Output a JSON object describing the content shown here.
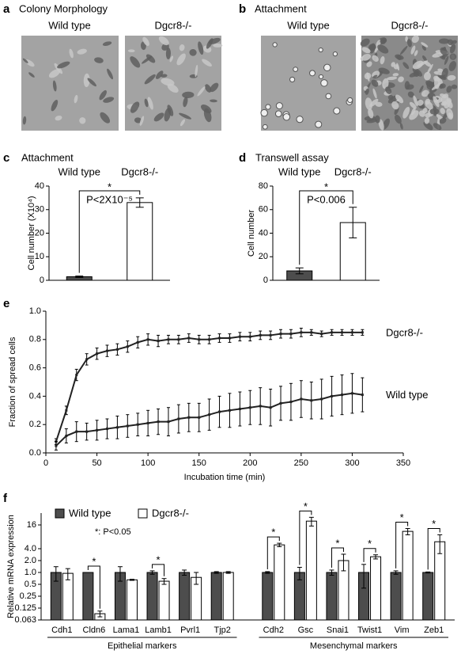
{
  "panels": {
    "a": {
      "letter": "a",
      "title": "Colony Morphology",
      "labels": [
        "Wild type",
        "Dgcr8-/-"
      ]
    },
    "b": {
      "letter": "b",
      "title": "Attachment",
      "labels": [
        "Wild type",
        "Dgcr8-/-"
      ]
    }
  },
  "chart_data": [
    {
      "type": "bar",
      "letter": "c",
      "title": "Attachment",
      "categories": [
        "Wild type",
        "Dgcr8-/-"
      ],
      "values": [
        1.5,
        33
      ],
      "errors": [
        0.3,
        2
      ],
      "colors": [
        "#4d4d4d",
        "#ffffff"
      ],
      "ylabel": "Cell number (X10⁴)",
      "ylim": [
        0,
        40
      ],
      "yticks": [
        0,
        10,
        20,
        30,
        40
      ],
      "annotation": "*",
      "pvalue": "P<2X10⁻⁵"
    },
    {
      "type": "bar",
      "letter": "d",
      "title": "Transwell assay",
      "categories": [
        "Wild type",
        "Dgcr8-/-"
      ],
      "values": [
        8,
        49
      ],
      "errors": [
        2.5,
        13
      ],
      "colors": [
        "#4d4d4d",
        "#ffffff"
      ],
      "ylabel": "Cell number",
      "ylim": [
        0,
        80
      ],
      "yticks": [
        0,
        20,
        40,
        60,
        80
      ],
      "annotation": "*",
      "pvalue": "P<0.006"
    },
    {
      "type": "line",
      "letter": "e",
      "xlabel": "Incubation time (min)",
      "ylabel": "Fraction of spread cells",
      "x": [
        10,
        20,
        30,
        40,
        50,
        60,
        70,
        80,
        90,
        100,
        110,
        120,
        130,
        140,
        150,
        160,
        170,
        180,
        190,
        200,
        210,
        220,
        230,
        240,
        250,
        260,
        270,
        280,
        290,
        300,
        310
      ],
      "series": [
        {
          "name": "Dgcr8-/-",
          "color": "#222222",
          "values": [
            0.08,
            0.3,
            0.55,
            0.66,
            0.7,
            0.72,
            0.73,
            0.75,
            0.78,
            0.8,
            0.79,
            0.8,
            0.8,
            0.81,
            0.8,
            0.8,
            0.81,
            0.81,
            0.82,
            0.82,
            0.83,
            0.83,
            0.84,
            0.84,
            0.85,
            0.85,
            0.84,
            0.85,
            0.85,
            0.85,
            0.85
          ],
          "errors": [
            0.02,
            0.03,
            0.04,
            0.04,
            0.04,
            0.04,
            0.04,
            0.04,
            0.04,
            0.04,
            0.04,
            0.03,
            0.03,
            0.03,
            0.03,
            0.03,
            0.03,
            0.03,
            0.03,
            0.03,
            0.03,
            0.03,
            0.03,
            0.03,
            0.03,
            0.02,
            0.02,
            0.02,
            0.02,
            0.02,
            0.02
          ]
        },
        {
          "name": "Wild type",
          "color": "#222222",
          "values": [
            0.05,
            0.12,
            0.15,
            0.15,
            0.16,
            0.17,
            0.18,
            0.19,
            0.2,
            0.21,
            0.22,
            0.22,
            0.24,
            0.25,
            0.25,
            0.27,
            0.29,
            0.3,
            0.31,
            0.32,
            0.33,
            0.32,
            0.35,
            0.36,
            0.38,
            0.37,
            0.38,
            0.4,
            0.41,
            0.42,
            0.41
          ],
          "errors": [
            0.03,
            0.05,
            0.07,
            0.06,
            0.07,
            0.07,
            0.08,
            0.08,
            0.08,
            0.09,
            0.09,
            0.1,
            0.1,
            0.1,
            0.1,
            0.11,
            0.11,
            0.12,
            0.12,
            0.12,
            0.13,
            0.13,
            0.12,
            0.13,
            0.13,
            0.13,
            0.14,
            0.14,
            0.14,
            0.14,
            0.12
          ]
        }
      ],
      "xlim": [
        0,
        350
      ],
      "xticks": [
        0,
        50,
        100,
        150,
        200,
        250,
        300,
        350
      ],
      "ylim": [
        0,
        1
      ],
      "yticks": [
        {
          "value": 0,
          "label": "0.0"
        },
        0.2,
        0.4,
        0.6,
        0.8,
        {
          "value": 1,
          "label": "1.0"
        }
      ]
    },
    {
      "type": "grouped-bar",
      "letter": "f",
      "ylabel": "Relative mRNA expression",
      "log_scale": true,
      "categories": [
        "Cdh1",
        "Cldn6",
        "Lama1",
        "Lamb1",
        "Pvrl1",
        "Tjp2",
        "Cdh2",
        "Gsc",
        "Snai1",
        "Twist1",
        "Vim",
        "Zeb1"
      ],
      "series": [
        {
          "name": "Wild type",
          "color": "#4d4d4d",
          "values": [
            1,
            1,
            1,
            1,
            1,
            1,
            1,
            1,
            1,
            1,
            1,
            1
          ],
          "errors": [
            0.4,
            0,
            0.4,
            0.1,
            0.15,
            0.05,
            0.05,
            0.35,
            0.15,
            0.6,
            0.1,
            0.03
          ]
        },
        {
          "name": "Dgcr8-/-",
          "color": "#ffffff",
          "values": [
            0.95,
            0.09,
            0.65,
            0.6,
            0.75,
            1.0,
            5.0,
            20,
            2.0,
            2.5,
            11,
            6
          ],
          "errors": [
            0.3,
            0.015,
            0.02,
            0.1,
            0.25,
            0.05,
            0.5,
            5,
            0.9,
            0.3,
            2,
            3
          ]
        }
      ],
      "annotations": [
        null,
        "*",
        null,
        "*",
        null,
        null,
        "*",
        "*",
        "*",
        "*",
        "*",
        "*"
      ],
      "note": "*: P<0.05",
      "groups": [
        "Epithelial markers",
        "Mesenchymal markers"
      ],
      "ylim": [
        0.0625,
        32
      ],
      "yticks": [
        {
          "value": 0.0625,
          "label": "0.063"
        },
        0.125,
        0.25,
        0.5,
        {
          "value": 1,
          "label": "1.0"
        },
        {
          "value": 2,
          "label": "2.0"
        },
        {
          "value": 4,
          "label": "4.0"
        },
        16
      ]
    }
  ]
}
